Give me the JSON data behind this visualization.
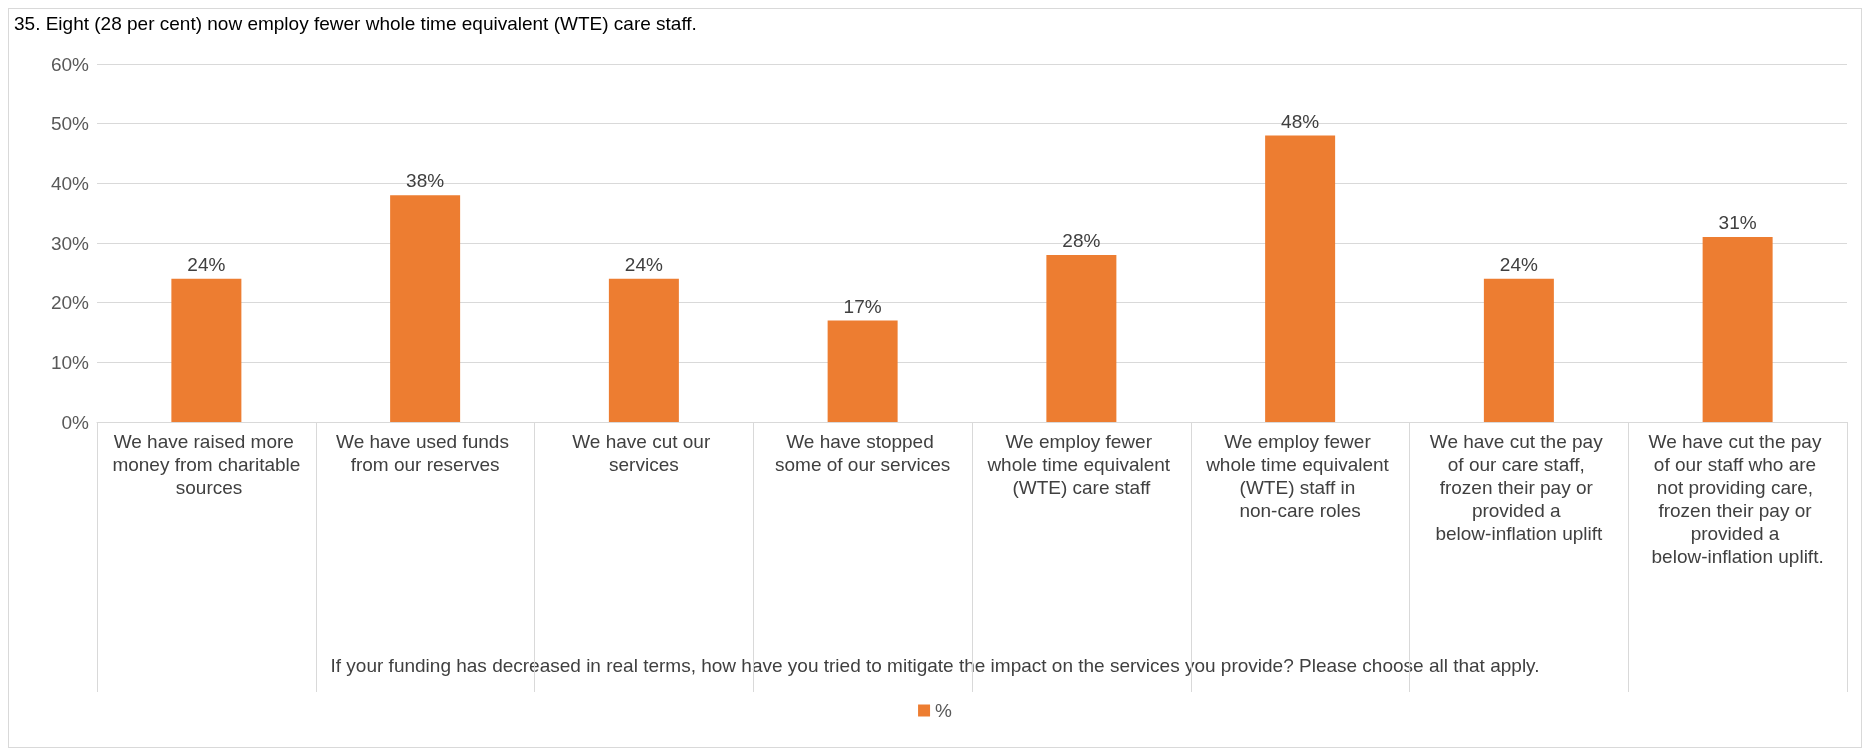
{
  "chart_data": {
    "type": "bar",
    "title": "35. Eight (28 per cent) now employ fewer whole time equivalent (WTE) care staff.",
    "categories": [
      "We have raised more money from charitable sources",
      "We have used funds from our reserves",
      "We have cut our services",
      "We have stopped some of our services",
      "We employ fewer whole time equivalent (WTE) care staff",
      "We employ fewer whole time equivalent (WTE) staff in non-care roles",
      "We have cut the pay of our care staff, frozen their pay or provided a below-inflation uplift",
      "We have cut the pay of our staff who are not providing care, frozen their pay or provided a below-inflation uplift."
    ],
    "series": [
      {
        "name": "%",
        "color": "#ed7d31",
        "values": [
          24,
          38,
          24,
          17,
          28,
          48,
          24,
          31
        ],
        "value_labels": [
          "24%",
          "38%",
          "24%",
          "17%",
          "28%",
          "48%",
          "24%",
          "31%"
        ]
      }
    ],
    "annotations": [
      "If your funding has decreased in real terms, how have you tried to mitigate the impact on the services you provide? Please choose all that apply."
    ],
    "ylim": [
      0,
      60
    ],
    "yticks": [
      {
        "value": 0,
        "label": "0%"
      },
      {
        "value": 10,
        "label": "10%"
      },
      {
        "value": 20,
        "label": "20%"
      },
      {
        "value": 30,
        "label": "30%"
      },
      {
        "value": 40,
        "label": "40%"
      },
      {
        "value": 50,
        "label": "50%"
      },
      {
        "value": 60,
        "label": "60%"
      }
    ],
    "grid": "y",
    "legend": "bottom"
  }
}
